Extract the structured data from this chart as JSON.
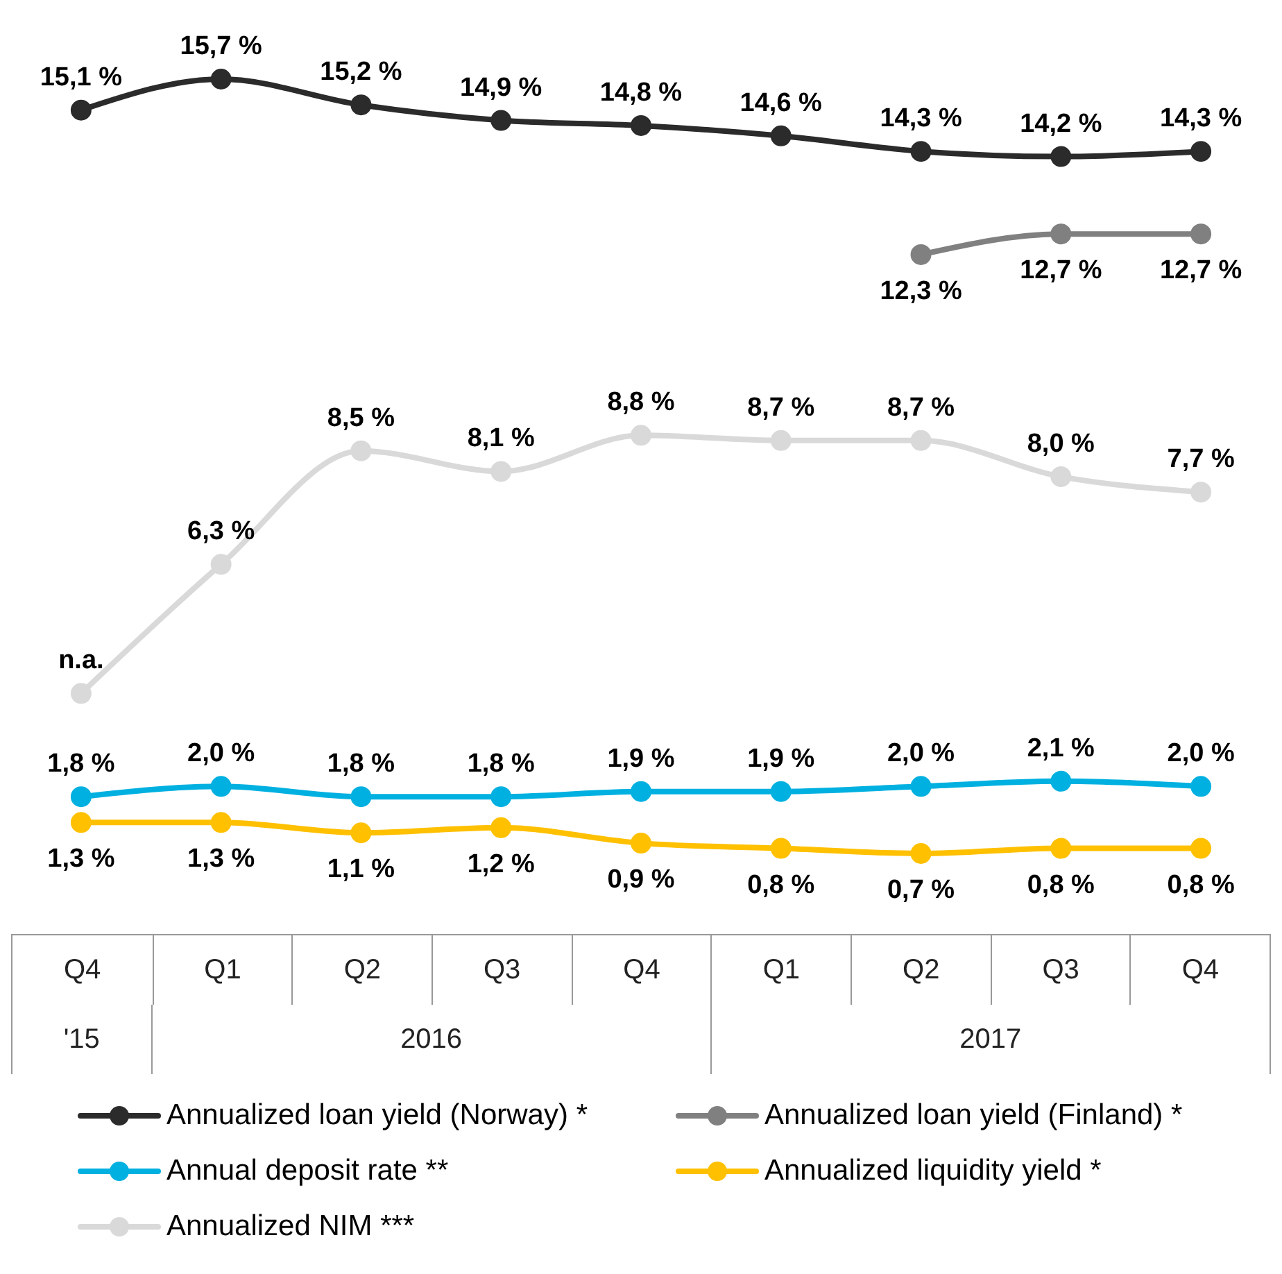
{
  "chart_data": {
    "type": "line",
    "categories": [
      "Q4",
      "Q1",
      "Q2",
      "Q3",
      "Q4",
      "Q1",
      "Q2",
      "Q3",
      "Q4"
    ],
    "annotations": [
      "'15",
      "2016",
      "2017"
    ],
    "series": [
      {
        "name": "Annualized loan yield (Norway) *",
        "color": "#2b2b2b",
        "values": [
          15.1,
          15.7,
          15.2,
          14.9,
          14.8,
          14.6,
          14.3,
          14.2,
          14.3
        ],
        "value_labels": [
          "15,1 %",
          "15,7 %",
          "15,2 %",
          "14,9 %",
          "14,8 %",
          "14,6 %",
          "14,3 %",
          "14,2 %",
          "14,3 %"
        ]
      },
      {
        "name": "Annualized loan yield (Finland) *",
        "color": "#808080",
        "values": [
          null,
          null,
          null,
          null,
          null,
          null,
          12.3,
          12.7,
          12.7
        ],
        "value_labels": [
          null,
          null,
          null,
          null,
          null,
          null,
          "12,3 %",
          "12,7 %",
          "12,7 %"
        ]
      },
      {
        "name": "Annual deposit rate **",
        "color": "#00b0e0",
        "values": [
          1.8,
          2.0,
          1.8,
          1.8,
          1.9,
          1.9,
          2.0,
          2.1,
          2.0
        ],
        "value_labels": [
          "1,8 %",
          "2,0 %",
          "1,8 %",
          "1,8 %",
          "1,9 %",
          "1,9 %",
          "2,0 %",
          "2,1 %",
          "2,0 %"
        ]
      },
      {
        "name": "Annualized liquidity yield *",
        "color": "#ffc000",
        "values": [
          1.3,
          1.3,
          1.1,
          1.2,
          0.9,
          0.8,
          0.7,
          0.8,
          0.8
        ],
        "value_labels": [
          "1,3 %",
          "1,3 %",
          "1,1 %",
          "1,2 %",
          "0,9 %",
          "0,8 %",
          "0,7 %",
          "0,8 %",
          "0,8 %"
        ]
      },
      {
        "name": "Annualized NIM ***",
        "color": "#d9d9d9",
        "values": [
          3.8,
          6.3,
          8.5,
          8.1,
          8.8,
          8.7,
          8.7,
          8.0,
          7.7
        ],
        "value_labels": [
          "n.a.",
          "6,3 %",
          "8,5 %",
          "8,1 %",
          "8,8 %",
          "8,7 %",
          "8,7 %",
          "8,0 %",
          "7,7 %"
        ]
      }
    ],
    "marker": "circle",
    "line_style": "solid",
    "legend": "bottom",
    "tick_labels": "x"
  }
}
